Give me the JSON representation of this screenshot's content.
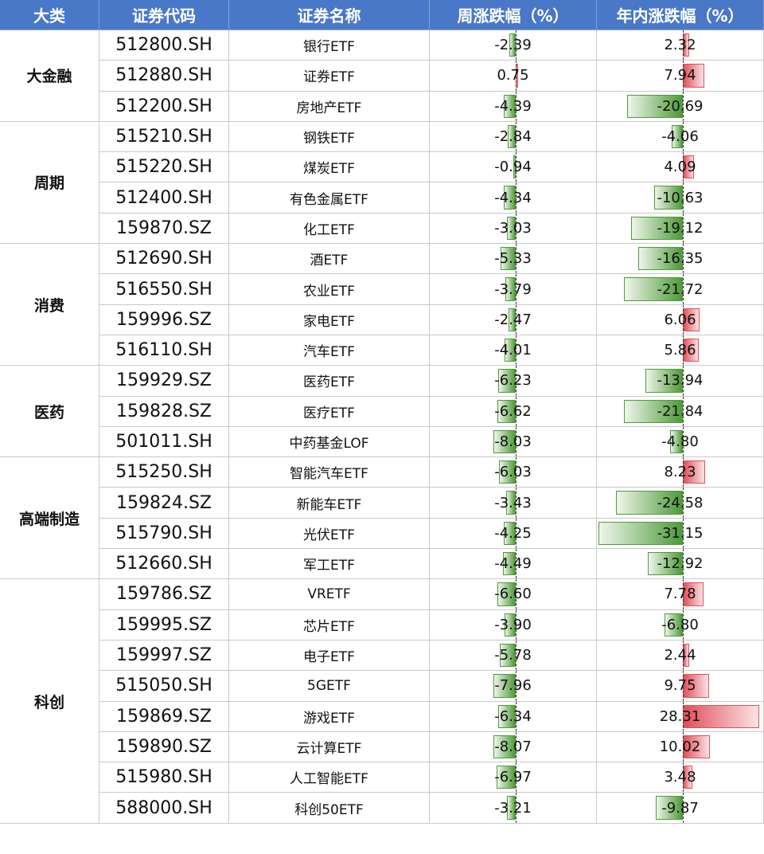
{
  "header": [
    "大类",
    "证券代码",
    "证券名称",
    "周涨跌幅（%）",
    "年内涨跌幅（%）"
  ],
  "groups": [
    {
      "name": "大金融",
      "rows": [
        {
          "code": "512800.SH",
          "name": "银行ETF",
          "week": -2.39,
          "ytd": 2.32
        },
        {
          "code": "512880.SH",
          "name": "证券ETF",
          "week": 0.75,
          "ytd": 7.94
        },
        {
          "code": "512200.SH",
          "name": "房地产ETF",
          "week": -4.39,
          "ytd": -20.69
        }
      ]
    },
    {
      "name": "周期",
      "rows": [
        {
          "code": "515210.SH",
          "name": "钢铁ETF",
          "week": -2.84,
          "ytd": -4.06
        },
        {
          "code": "515220.SH",
          "name": "煤炭ETF",
          "week": -0.94,
          "ytd": 4.09
        },
        {
          "code": "512400.SH",
          "name": "有色金属ETF",
          "week": -4.34,
          "ytd": -10.63
        },
        {
          "code": "159870.SZ",
          "name": "化工ETF",
          "week": -3.03,
          "ytd": -19.12
        }
      ]
    },
    {
      "name": "消费",
      "rows": [
        {
          "code": "512690.SH",
          "name": "酒ETF",
          "week": -5.33,
          "ytd": -16.35
        },
        {
          "code": "516550.SH",
          "name": "农业ETF",
          "week": -3.79,
          "ytd": -21.72
        },
        {
          "code": "159996.SZ",
          "name": "家电ETF",
          "week": -2.47,
          "ytd": 6.06
        },
        {
          "code": "516110.SH",
          "name": "汽车ETF",
          "week": -4.01,
          "ytd": 5.86
        }
      ]
    },
    {
      "name": "医药",
      "rows": [
        {
          "code": "159929.SZ",
          "name": "医药ETF",
          "week": -6.23,
          "ytd": -13.94
        },
        {
          "code": "159828.SZ",
          "name": "医疗ETF",
          "week": -6.62,
          "ytd": -21.84
        },
        {
          "code": "501011.SH",
          "name": "中药基金LOF",
          "week": -8.03,
          "ytd": -4.8,
          "ytd_label": "-4.80"
        }
      ]
    },
    {
      "name": "高端制造",
      "rows": [
        {
          "code": "515250.SH",
          "name": "智能汽车ETF",
          "week": -6.03,
          "ytd": 8.23
        },
        {
          "code": "159824.SZ",
          "name": "新能车ETF",
          "week": -3.43,
          "ytd": -24.58
        },
        {
          "code": "515790.SH",
          "name": "光伏ETF",
          "week": -4.25,
          "ytd": -31.15
        },
        {
          "code": "512660.SH",
          "name": "军工ETF",
          "week": -4.49,
          "ytd": -12.92
        }
      ]
    },
    {
      "name": "科创",
      "rows": [
        {
          "code": "159786.SZ",
          "name": "VRETF",
          "week": -6.6,
          "week_label": "-6.60",
          "ytd": 7.78
        },
        {
          "code": "159995.SZ",
          "name": "芯片ETF",
          "week": -3.9,
          "week_label": "-3.90",
          "ytd": -6.8,
          "ytd_label": "-6.80"
        },
        {
          "code": "159997.SZ",
          "name": "电子ETF",
          "week": -5.78,
          "ytd": 2.44
        },
        {
          "code": "515050.SH",
          "name": "5GETF",
          "week": -7.96,
          "ytd": 9.75
        },
        {
          "code": "159869.SZ",
          "name": "游戏ETF",
          "week": -6.34,
          "ytd": 28.31
        },
        {
          "code": "159890.SZ",
          "name": "云计算ETF",
          "week": -8.07,
          "ytd": 10.02
        },
        {
          "code": "515980.SH",
          "name": "人工智能ETF",
          "week": -6.97,
          "ytd": 3.48
        },
        {
          "code": "588000.SH",
          "name": "科创50ETF",
          "week": -3.21,
          "ytd": -9.87
        }
      ]
    }
  ]
}
